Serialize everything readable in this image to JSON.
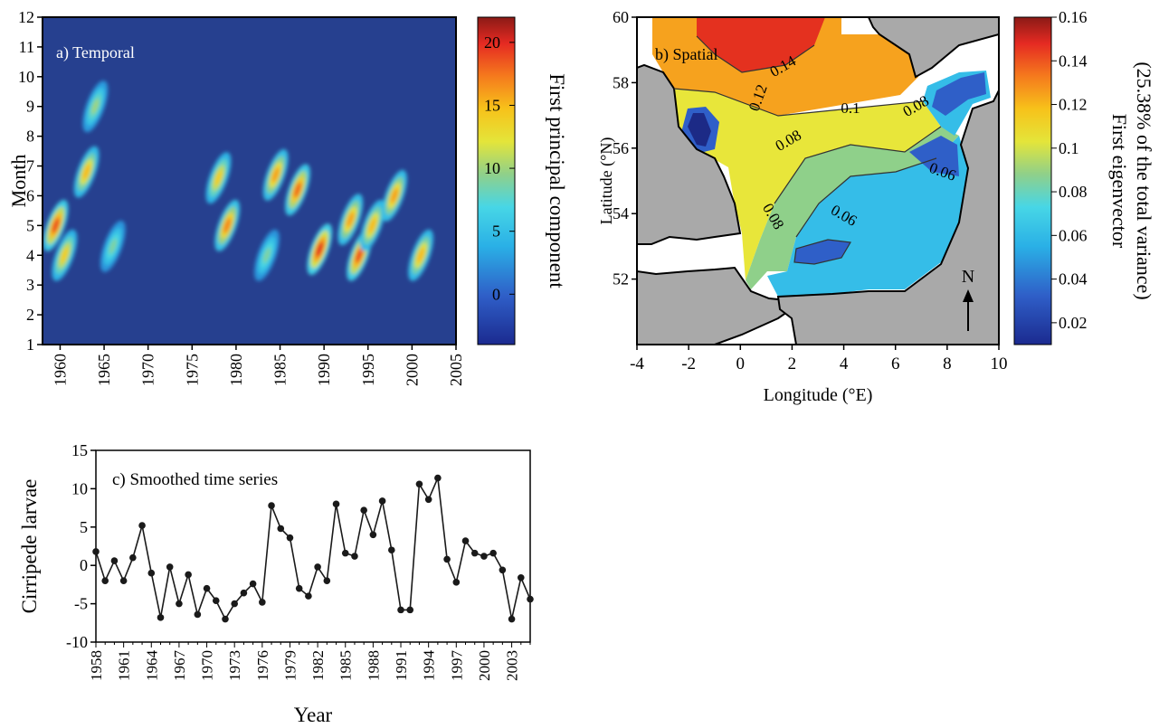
{
  "chart_data": [
    {
      "type": "heatmap",
      "panel_label": "a) Temporal",
      "ylabel": "Month",
      "colorbar_label": "First principal component",
      "x_ticks": [
        "1960",
        "1965",
        "1970",
        "1975",
        "1980",
        "1985",
        "1990",
        "1995",
        "2000",
        "2005"
      ],
      "y_ticks": [
        "1",
        "2",
        "3",
        "4",
        "5",
        "6",
        "7",
        "8",
        "9",
        "10",
        "11",
        "12"
      ],
      "colorbar_ticks": [
        "0",
        "5",
        "10",
        "15",
        "20"
      ],
      "xlim": [
        1958,
        2005
      ],
      "ylim": [
        1,
        12
      ],
      "colorbar_range": [
        -4,
        22
      ],
      "hotspots": [
        {
          "year": 1959.5,
          "month": 5.0,
          "value": 19
        },
        {
          "year": 1960.5,
          "month": 4.0,
          "value": 14
        },
        {
          "year": 1963,
          "month": 6.8,
          "value": 15
        },
        {
          "year": 1964,
          "month": 9.0,
          "value": 10
        },
        {
          "year": 1966,
          "month": 4.3,
          "value": 9
        },
        {
          "year": 1978,
          "month": 6.6,
          "value": 14
        },
        {
          "year": 1979,
          "month": 5.0,
          "value": 17
        },
        {
          "year": 1983.5,
          "month": 4.0,
          "value": 9
        },
        {
          "year": 1984.5,
          "month": 6.7,
          "value": 16
        },
        {
          "year": 1987,
          "month": 6.2,
          "value": 18
        },
        {
          "year": 1989.5,
          "month": 4.2,
          "value": 20
        },
        {
          "year": 1993,
          "month": 5.2,
          "value": 16
        },
        {
          "year": 1994,
          "month": 4.0,
          "value": 19
        },
        {
          "year": 1995.5,
          "month": 5.0,
          "value": 15
        },
        {
          "year": 1998,
          "month": 6.0,
          "value": 16
        },
        {
          "year": 2001,
          "month": 4.0,
          "value": 15
        }
      ]
    },
    {
      "type": "contour",
      "panel_label": "b) Spatial",
      "xlabel": "Longitude (°E)",
      "ylabel": "Latitude (°N)",
      "colorbar_label_line1": "First eigenvector",
      "colorbar_label_line2": "(25.38% of the total variance)",
      "x_ticks": [
        "-4",
        "-2",
        "0",
        "2",
        "4",
        "6",
        "8",
        "10"
      ],
      "y_ticks": [
        "52",
        "54",
        "56",
        "58",
        "60"
      ],
      "colorbar_ticks": [
        "0.02",
        "0.04",
        "0.06",
        "0.08",
        "0.1",
        "0.12",
        "0.14",
        "0.16"
      ],
      "xlim": [
        -4,
        10
      ],
      "ylim": [
        50,
        60
      ],
      "colorbar_range": [
        0.01,
        0.16
      ],
      "contour_labels": [
        "0.14",
        "0.12",
        "0.1",
        "0.08",
        "0.08",
        "0.06",
        "0.06",
        "0.08"
      ],
      "north_label": "N"
    },
    {
      "type": "line",
      "panel_label": "c) Smoothed time series",
      "xlabel": "Year",
      "ylabel": "Cirripede larvae",
      "x_ticks": [
        "1958",
        "1961",
        "1964",
        "1967",
        "1970",
        "1973",
        "1976",
        "1979",
        "1982",
        "1985",
        "1988",
        "1991",
        "1994",
        "1997",
        "2000",
        "2003"
      ],
      "y_ticks": [
        "-10",
        "-5",
        "0",
        "5",
        "10",
        "15"
      ],
      "ylim": [
        -10,
        15
      ],
      "x": [
        1958,
        1959,
        1960,
        1961,
        1962,
        1963,
        1964,
        1965,
        1966,
        1967,
        1968,
        1969,
        1970,
        1971,
        1972,
        1973,
        1974,
        1975,
        1976,
        1977,
        1978,
        1979,
        1980,
        1981,
        1982,
        1983,
        1984,
        1985,
        1986,
        1987,
        1988,
        1989,
        1990,
        1991,
        1992,
        1993,
        1994,
        1995,
        1996,
        1997,
        1998,
        1999,
        2000,
        2001,
        2002,
        2003,
        2004,
        2005
      ],
      "y": [
        1.8,
        -2.0,
        0.6,
        -2.0,
        1.0,
        5.2,
        -1.0,
        -6.8,
        -0.2,
        -5.0,
        -1.2,
        -6.4,
        -3.0,
        -4.6,
        -7.0,
        -5.0,
        -3.6,
        -2.4,
        -4.8,
        7.8,
        4.8,
        3.6,
        -3.0,
        -4.0,
        -0.2,
        -2.0,
        8.0,
        1.6,
        1.2,
        7.2,
        4.0,
        8.4,
        2.0,
        -5.8,
        -5.8,
        10.6,
        8.6,
        11.4,
        0.8,
        -2.2,
        3.2,
        1.6,
        1.2,
        1.6,
        -0.6,
        -7.0,
        -1.6,
        -4.4
      ]
    }
  ]
}
